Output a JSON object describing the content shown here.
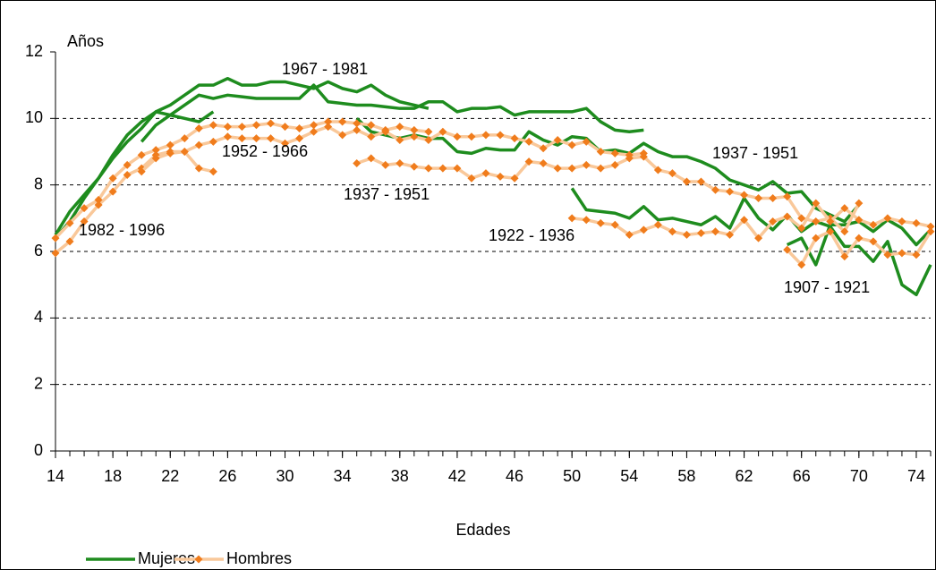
{
  "chart_data": {
    "type": "line",
    "y_label": "Años",
    "x_label": "Edades",
    "xlim": [
      14,
      75
    ],
    "ylim": [
      0,
      12
    ],
    "xticks": [
      14,
      18,
      22,
      26,
      30,
      34,
      38,
      42,
      46,
      50,
      54,
      58,
      62,
      66,
      70,
      74
    ],
    "yticks": [
      0,
      2,
      4,
      6,
      8,
      10,
      12
    ],
    "grid": true,
    "legend": [
      {
        "name": "Mujeres",
        "color": "#1e8c1e",
        "marker": false
      },
      {
        "name": "Hombres",
        "color": "#f9c89a",
        "marker_color": "#f07c1c",
        "marker": true
      }
    ],
    "series": [
      {
        "legend": 0,
        "x": [
          14,
          15,
          16,
          17,
          18,
          19,
          20,
          21,
          22,
          23,
          24,
          25,
          26,
          27,
          28,
          29,
          30,
          31,
          32,
          33,
          34,
          35,
          36,
          37,
          38,
          39,
          40
        ],
        "values": [
          6.5,
          7.2,
          7.7,
          8.2,
          8.9,
          9.5,
          9.9,
          10.2,
          10.4,
          10.7,
          11.0,
          11.0,
          11.2,
          11.0,
          11.0,
          11.1,
          11.1,
          11.0,
          10.9,
          11.1,
          10.9,
          10.8,
          11.0,
          10.7,
          10.5,
          10.4,
          10.3
        ]
      },
      {
        "legend": 0,
        "x": [
          14,
          15,
          16,
          17,
          18,
          19,
          20,
          21,
          22,
          23,
          24,
          25
        ],
        "values": [
          6.4,
          6.9,
          7.6,
          8.2,
          8.8,
          9.3,
          9.7,
          10.2,
          10.1,
          10.0,
          9.9,
          10.2
        ]
      },
      {
        "legend": 0,
        "x": [
          20,
          21,
          22,
          23,
          24,
          25,
          26,
          27,
          28,
          29,
          30,
          31,
          32,
          33,
          34,
          35,
          36,
          37,
          38,
          39,
          40,
          41,
          42,
          43,
          44,
          45,
          46,
          47,
          48,
          49,
          50,
          51,
          52,
          53,
          54,
          55
        ],
        "values": [
          9.3,
          9.8,
          10.1,
          10.4,
          10.7,
          10.6,
          10.7,
          10.65,
          10.6,
          10.6,
          10.6,
          10.6,
          11.0,
          10.5,
          10.45,
          10.4,
          10.4,
          10.35,
          10.3,
          10.3,
          10.5,
          10.5,
          10.2,
          10.3,
          10.3,
          10.35,
          10.1,
          10.2,
          10.2,
          10.2,
          10.2,
          10.3,
          9.9,
          9.65,
          9.6,
          9.65
        ]
      },
      {
        "legend": 0,
        "x": [
          35,
          36,
          37,
          38,
          39,
          40,
          41,
          42,
          43,
          44,
          45,
          46,
          47,
          48,
          49,
          50,
          51,
          52,
          53,
          54,
          55,
          56,
          57,
          58,
          59,
          60,
          61,
          62,
          63,
          64,
          65,
          66,
          67,
          68,
          69,
          70
        ],
        "values": [
          10.0,
          9.6,
          9.5,
          9.4,
          9.5,
          9.4,
          9.4,
          9.0,
          8.95,
          9.1,
          9.05,
          9.05,
          9.6,
          9.35,
          9.2,
          9.45,
          9.4,
          9.0,
          9.05,
          8.95,
          9.25,
          9.0,
          8.85,
          8.85,
          8.7,
          8.5,
          8.15,
          8.0,
          7.85,
          8.1,
          7.75,
          7.8,
          7.3,
          7.1,
          6.9,
          7.4
        ]
      },
      {
        "legend": 0,
        "x": [
          50,
          51,
          52,
          53,
          54,
          55,
          56,
          57,
          58,
          59,
          60,
          61,
          62,
          63,
          64,
          65,
          66,
          67,
          68,
          69,
          70,
          71,
          72,
          73,
          74,
          75
        ],
        "values": [
          7.9,
          7.25,
          7.2,
          7.15,
          7.0,
          7.35,
          6.95,
          7.0,
          6.9,
          6.8,
          7.05,
          6.7,
          7.6,
          7.0,
          6.65,
          7.1,
          6.6,
          6.9,
          6.75,
          6.15,
          6.15,
          5.7,
          6.3,
          5.0,
          4.7,
          5.6
        ]
      },
      {
        "legend": 0,
        "x": [
          65,
          66,
          67,
          68,
          69,
          70,
          71,
          72,
          73,
          74,
          75
        ],
        "values": [
          6.2,
          6.4,
          5.6,
          6.8,
          6.8,
          6.9,
          6.6,
          6.95,
          6.7,
          6.2,
          6.65
        ]
      },
      {
        "legend": 1,
        "x": [
          14,
          15,
          16,
          17,
          18,
          19,
          20,
          21,
          22,
          23,
          24,
          25
        ],
        "values": [
          5.95,
          6.3,
          6.9,
          7.4,
          7.8,
          8.3,
          8.5,
          8.9,
          9.0,
          9.0,
          8.5,
          8.4
        ]
      },
      {
        "legend": 1,
        "x": [
          14,
          15,
          16,
          17,
          18,
          19,
          20,
          21,
          22,
          23,
          24,
          25,
          26,
          27,
          28,
          29,
          30,
          31,
          32,
          33,
          34,
          35,
          36,
          37,
          38,
          39,
          40
        ],
        "values": [
          6.4,
          6.85,
          7.3,
          7.55,
          8.2,
          8.6,
          8.9,
          9.05,
          9.2,
          9.4,
          9.7,
          9.8,
          9.75,
          9.75,
          9.8,
          9.85,
          9.75,
          9.7,
          9.8,
          9.9,
          9.9,
          9.85,
          9.8,
          9.65,
          9.75,
          9.65,
          9.6
        ]
      },
      {
        "legend": 1,
        "x": [
          20,
          21,
          22,
          23,
          24,
          25,
          26,
          27,
          28,
          29,
          30,
          31,
          32,
          33,
          34,
          35,
          36,
          37,
          38,
          39,
          40,
          41,
          42,
          43,
          44,
          45,
          46,
          47,
          48,
          49,
          50,
          51,
          52,
          53,
          54,
          55
        ],
        "values": [
          8.4,
          8.8,
          8.95,
          9.0,
          9.2,
          9.3,
          9.45,
          9.4,
          9.4,
          9.4,
          9.25,
          9.4,
          9.6,
          9.75,
          9.5,
          9.65,
          9.45,
          9.6,
          9.35,
          9.45,
          9.35,
          9.6,
          9.45,
          9.45,
          9.5,
          9.5,
          9.4,
          9.3,
          9.1,
          9.35,
          9.2,
          9.3,
          9.0,
          8.95,
          8.9,
          8.95
        ]
      },
      {
        "legend": 1,
        "x": [
          35,
          36,
          37,
          38,
          39,
          40,
          41,
          42,
          43,
          44,
          45,
          46,
          47,
          48,
          49,
          50,
          51,
          52,
          53,
          54,
          55,
          56,
          57,
          58,
          59,
          60,
          61,
          62,
          63,
          64,
          65,
          66,
          67,
          68,
          69,
          70
        ],
        "values": [
          8.65,
          8.8,
          8.6,
          8.65,
          8.55,
          8.5,
          8.5,
          8.5,
          8.2,
          8.35,
          8.25,
          8.2,
          8.7,
          8.65,
          8.5,
          8.5,
          8.6,
          8.5,
          8.6,
          8.8,
          8.85,
          8.45,
          8.35,
          8.1,
          8.1,
          7.85,
          7.8,
          7.7,
          7.6,
          7.6,
          7.65,
          7.0,
          6.9,
          7.0,
          6.6,
          7.45
        ]
      },
      {
        "legend": 1,
        "x": [
          50,
          51,
          52,
          53,
          54,
          55,
          56,
          57,
          58,
          59,
          60,
          61,
          62,
          63,
          64,
          65,
          66,
          67,
          68,
          69,
          70,
          71,
          72,
          73,
          74,
          75
        ],
        "values": [
          7.0,
          6.95,
          6.85,
          6.8,
          6.5,
          6.65,
          6.8,
          6.6,
          6.5,
          6.55,
          6.6,
          6.5,
          6.95,
          6.4,
          6.9,
          7.05,
          6.7,
          7.45,
          6.9,
          7.3,
          6.95,
          6.8,
          7.0,
          6.9,
          6.85,
          6.75
        ]
      },
      {
        "legend": 1,
        "x": [
          65,
          66,
          67,
          68,
          69,
          70,
          71,
          72,
          73,
          74,
          75
        ],
        "values": [
          6.05,
          5.6,
          6.4,
          6.6,
          5.85,
          6.4,
          6.3,
          5.9,
          5.95,
          5.9,
          6.6
        ]
      }
    ],
    "annotations": [
      "1967 - 1981",
      "1952 - 1966",
      "1937 - 1951",
      "1982 - 1996",
      "1937 - 1951",
      "1922 - 1936",
      "1907 - 1921"
    ]
  }
}
